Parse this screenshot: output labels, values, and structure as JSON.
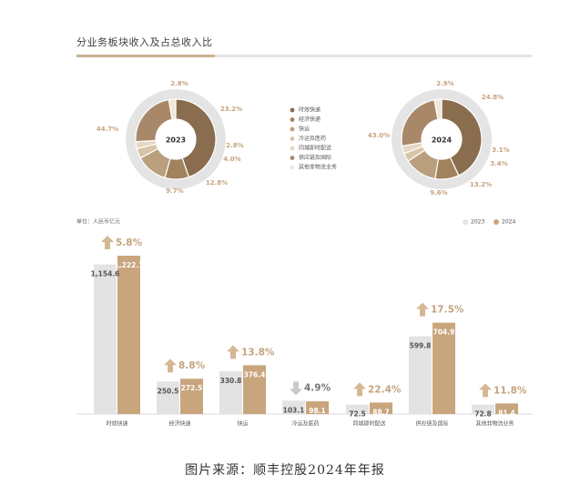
{
  "title": "分业务板块收入及占总收入比",
  "caption": "图片来源：顺丰控股2024年年报",
  "segments": [
    "时效快递",
    "经济快递",
    "快运",
    "冷运及医药",
    "同城即时配送",
    "供应链及国际",
    "其他非物流业务"
  ],
  "colors": {
    "segments": [
      "#8a6d4e",
      "#a2825d",
      "#b99f7d",
      "#d8c4a6",
      "#e6d8c2",
      "#a88868",
      "#f0e6d6"
    ],
    "bar_2023": "#e3e3e3",
    "bar_2024": "#c9a57d",
    "ring_outer": "#e4e4e4",
    "up_arrow": "#d4b895",
    "down_arrow": "#c9c9c9",
    "axis": "#cccccc"
  },
  "chart_data": [
    {
      "type": "pie",
      "label": "2023",
      "categories": [
        "时效快递",
        "经济快递",
        "快运",
        "冷运及医药",
        "同城即时配送",
        "供应链及国际",
        "其他非物流业务"
      ],
      "values": [
        44.7,
        9.7,
        12.8,
        4.0,
        2.8,
        23.2,
        2.8
      ],
      "value_labels": [
        "44.7%",
        "9.7%",
        "12.8%",
        "4.0%",
        "2.8%",
        "23.2%",
        "2.8%"
      ]
    },
    {
      "type": "pie",
      "label": "2024",
      "categories": [
        "时效快递",
        "经济快递",
        "快运",
        "冷运及医药",
        "同城即时配送",
        "供应链及国际",
        "其他非物流业务"
      ],
      "values": [
        43.0,
        9.6,
        13.2,
        3.4,
        3.1,
        24.8,
        2.9
      ],
      "value_labels": [
        "43.0%",
        "9.6%",
        "13.2%",
        "3.4%",
        "3.1%",
        "24.8%",
        "2.9%"
      ]
    },
    {
      "type": "bar",
      "unit_label": "单位：人民币亿元",
      "categories": [
        "时效快递",
        "经济快递",
        "快运",
        "冷运及医药",
        "同城即时配送",
        "供应链及国际",
        "其他非物流业务"
      ],
      "series": [
        {
          "name": "2023",
          "values": [
            1154.6,
            250.5,
            330.8,
            103.1,
            72.5,
            599.8,
            72.8
          ],
          "value_labels": [
            "1,154.6",
            "250.5",
            "330.8",
            "103.1",
            "72.5",
            "599.8",
            "72.8"
          ]
        },
        {
          "name": "2024",
          "values": [
            1222.1,
            272.5,
            376.4,
            98.1,
            88.7,
            704.9,
            81.4
          ],
          "value_labels": [
            "1,222.1",
            "272.5",
            "376.4",
            "98.1",
            "88.7",
            "704.9",
            "81.4"
          ]
        }
      ],
      "growth_labels": [
        "5.8%",
        "8.8%",
        "13.8%",
        "4.9%",
        "22.4%",
        "17.5%",
        "11.8%"
      ],
      "growth_direction": [
        "up",
        "up",
        "up",
        "down",
        "up",
        "up",
        "up"
      ],
      "ylim": [
        0,
        1300
      ],
      "legend_position": "top-right"
    }
  ]
}
